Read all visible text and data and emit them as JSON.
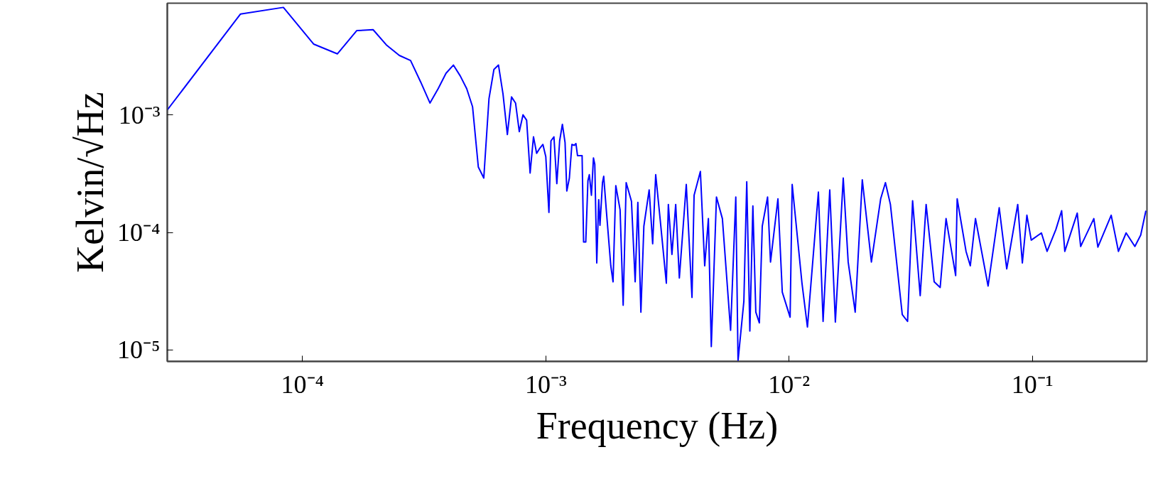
{
  "chart_data": {
    "type": "line",
    "xlabel": "Frequency (Hz)",
    "ylabel": "Kelvin/√Hz",
    "log": "xy",
    "grid": false,
    "marker": "none",
    "line_style": "solid",
    "xlim": [
      2.78e-05,
      0.296
    ],
    "ylim": [
      8e-06,
      0.0089
    ],
    "xticks": [
      {
        "value": 0.0001,
        "label": "10⁻⁴"
      },
      {
        "value": 0.001,
        "label": "10⁻³"
      },
      {
        "value": 0.01,
        "label": "10⁻²"
      },
      {
        "value": 0.1,
        "label": "10⁻¹"
      }
    ],
    "yticks": [
      {
        "value": 1e-05,
        "label": "10⁻⁵"
      },
      {
        "value": 0.0001,
        "label": "10⁻⁴"
      },
      {
        "value": 0.001,
        "label": "10⁻³"
      }
    ],
    "series": [
      {
        "color": "#0000ff",
        "x": [
          2.78e-05,
          5.56e-05,
          8.34e-05,
          0.000111,
          0.000139,
          0.000167,
          0.000195,
          0.000222,
          0.00025,
          0.000278,
          0.000306,
          0.000334,
          0.000361,
          0.000389,
          0.000417,
          0.000445,
          0.000473,
          0.0005,
          0.000528,
          0.000556,
          0.000584,
          0.000612,
          0.000639,
          0.000667,
          0.000695,
          0.000723,
          0.000751,
          0.000778,
          0.000806,
          0.000834,
          0.000862,
          0.00089,
          0.000917,
          0.000945,
          0.000973,
          0.001,
          0.00103,
          0.00105,
          0.00108,
          0.00111,
          0.00114,
          0.00117,
          0.0012,
          0.00122,
          0.00125,
          0.00128,
          0.00131,
          0.00133,
          0.00135,
          0.00141,
          0.00143,
          0.00146,
          0.00149,
          0.00151,
          0.00154,
          0.00157,
          0.00159,
          0.00162,
          0.00165,
          0.00167,
          0.00171,
          0.00173,
          0.00177,
          0.00185,
          0.00189,
          0.00194,
          0.00202,
          0.00208,
          0.00214,
          0.00225,
          0.00233,
          0.00239,
          0.00246,
          0.00253,
          0.00266,
          0.00275,
          0.00283,
          0.00295,
          0.00313,
          0.00319,
          0.0033,
          0.00342,
          0.00354,
          0.00378,
          0.00399,
          0.00407,
          0.00432,
          0.0045,
          0.00466,
          0.00479,
          0.00503,
          0.00532,
          0.00575,
          0.00604,
          0.00617,
          0.00652,
          0.0067,
          0.0069,
          0.0071,
          0.0073,
          0.00755,
          0.00776,
          0.00816,
          0.00839,
          0.009,
          0.00938,
          0.0101,
          0.0103,
          0.0113,
          0.0119,
          0.0132,
          0.0138,
          0.0147,
          0.0155,
          0.0167,
          0.0175,
          0.0187,
          0.02,
          0.0218,
          0.0238,
          0.0249,
          0.0261,
          0.0292,
          0.0307,
          0.0322,
          0.0346,
          0.0366,
          0.0395,
          0.0418,
          0.0442,
          0.0484,
          0.0491,
          0.0534,
          0.0556,
          0.0584,
          0.0658,
          0.0731,
          0.0785,
          0.0871,
          0.091,
          0.095,
          0.099,
          0.109,
          0.115,
          0.125,
          0.132,
          0.136,
          0.153,
          0.158,
          0.179,
          0.186,
          0.211,
          0.226,
          0.243,
          0.264,
          0.279,
          0.293
        ],
        "values": [
          0.0011,
          0.0072,
          0.0082,
          0.004,
          0.0033,
          0.0052,
          0.0053,
          0.0039,
          0.0032,
          0.0029,
          0.0019,
          0.00126,
          0.00167,
          0.00226,
          0.00265,
          0.00214,
          0.00167,
          0.00117,
          0.00036,
          0.00029,
          0.00137,
          0.00243,
          0.00265,
          0.0015,
          0.00068,
          0.00142,
          0.00126,
          0.00072,
          0.001,
          0.0009,
          0.00032,
          0.00065,
          0.00047,
          0.00052,
          0.00056,
          0.00044,
          0.000148,
          0.0006,
          0.00065,
          0.00026,
          0.0006,
          0.00083,
          0.00058,
          0.000225,
          0.00029,
          0.00056,
          0.00055,
          0.00057,
          0.00045,
          0.00045,
          8.3e-05,
          8.3e-05,
          0.000275,
          0.00031,
          0.000207,
          0.00043,
          0.00038,
          5.5e-05,
          0.00019,
          0.000115,
          0.000265,
          0.0003,
          0.000162,
          5.2e-05,
          3.8e-05,
          0.00025,
          0.000156,
          2.4e-05,
          0.000265,
          0.000184,
          3.8e-05,
          0.00018,
          2.1e-05,
          0.000113,
          0.00023,
          8e-05,
          0.00031,
          0.000131,
          3.7e-05,
          0.000173,
          6.5e-05,
          0.000173,
          4.1e-05,
          0.000256,
          2.8e-05,
          0.000207,
          0.00033,
          5.2e-05,
          0.000131,
          1.07e-05,
          0.0002,
          0.000131,
          1.47e-05,
          0.0002,
          8.1e-06,
          2.6e-05,
          0.00027,
          1.45e-05,
          0.000168,
          2.1e-05,
          1.7e-05,
          0.000113,
          0.0002,
          5.6e-05,
          0.000193,
          3.1e-05,
          1.9e-05,
          0.000256,
          3.7e-05,
          1.57e-05,
          0.00022,
          1.75e-05,
          0.00023,
          1.73e-05,
          0.00029,
          5.6e-05,
          2.1e-05,
          0.00028,
          5.6e-05,
          0.000193,
          0.000265,
          0.000173,
          2e-05,
          1.75e-05,
          0.000186,
          2.9e-05,
          0.000173,
          3.8e-05,
          3.4e-05,
          0.000131,
          4.3e-05,
          0.000193,
          6.9e-05,
          5.2e-05,
          0.000131,
          3.5e-05,
          0.000162,
          4.9e-05,
          0.000173,
          5.5e-05,
          0.00014,
          8.6e-05,
          9.9e-05,
          6.9e-05,
          0.000106,
          0.000153,
          6.9e-05,
          0.000146,
          7.6e-05,
          0.000131,
          7.5e-05,
          0.00014,
          6.9e-05,
          9.9e-05,
          7.6e-05,
          9.5e-05,
          0.000153
        ]
      }
    ]
  }
}
